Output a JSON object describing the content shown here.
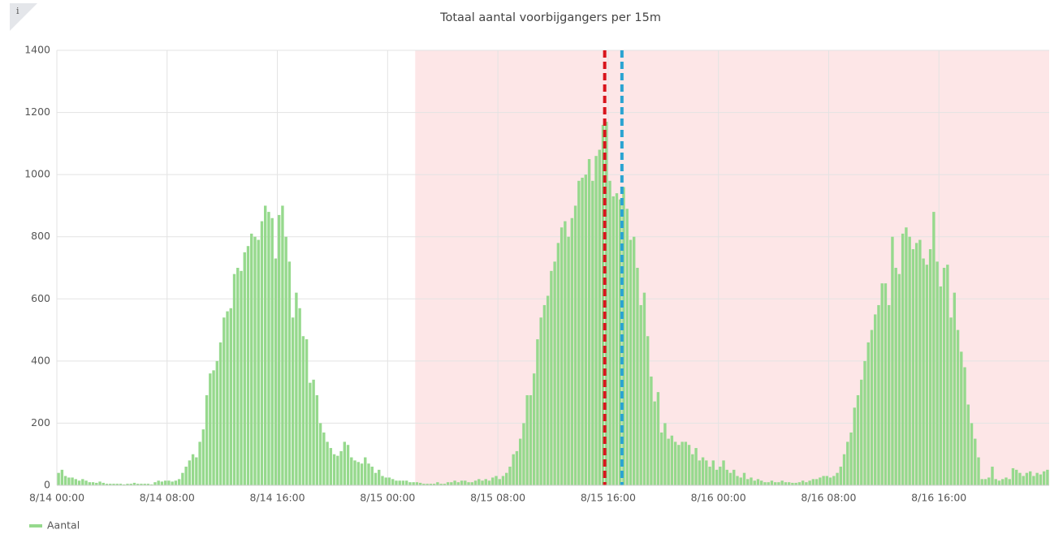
{
  "chart_data": {
    "type": "bar",
    "title": "Totaal aantal voorbijgangers per 15m",
    "series": [
      {
        "name": "Aantal",
        "color": "#96d98d",
        "values": [
          40,
          50,
          30,
          25,
          25,
          20,
          15,
          20,
          15,
          10,
          10,
          8,
          12,
          8,
          5,
          5,
          5,
          5,
          5,
          3,
          5,
          5,
          8,
          5,
          5,
          5,
          5,
          3,
          10,
          15,
          12,
          15,
          15,
          12,
          15,
          20,
          40,
          60,
          80,
          100,
          90,
          140,
          180,
          290,
          360,
          370,
          400,
          460,
          540,
          560,
          570,
          680,
          700,
          690,
          750,
          770,
          810,
          800,
          790,
          850,
          900,
          880,
          860,
          730,
          870,
          900,
          800,
          720,
          540,
          620,
          570,
          480,
          470,
          330,
          340,
          290,
          200,
          170,
          140,
          120,
          100,
          95,
          110,
          140,
          130,
          90,
          80,
          75,
          70,
          90,
          70,
          60,
          40,
          50,
          30,
          25,
          25,
          20,
          15,
          15,
          15,
          15,
          10,
          10,
          10,
          8,
          5,
          5,
          5,
          5,
          10,
          5,
          5,
          10,
          10,
          15,
          10,
          15,
          15,
          10,
          10,
          15,
          20,
          15,
          20,
          15,
          25,
          30,
          20,
          30,
          40,
          60,
          100,
          110,
          150,
          200,
          290,
          290,
          360,
          470,
          540,
          580,
          610,
          690,
          720,
          780,
          830,
          850,
          800,
          860,
          900,
          980,
          990,
          1000,
          1050,
          980,
          1060,
          1080,
          1160,
          1170,
          980,
          930,
          940,
          920,
          960,
          890,
          790,
          800,
          700,
          580,
          620,
          480,
          350,
          270,
          300,
          170,
          200,
          150,
          160,
          140,
          130,
          140,
          140,
          130,
          100,
          120,
          80,
          90,
          80,
          60,
          80,
          50,
          60,
          80,
          50,
          40,
          50,
          30,
          25,
          40,
          20,
          25,
          15,
          20,
          15,
          10,
          10,
          15,
          10,
          10,
          15,
          10,
          10,
          8,
          8,
          10,
          15,
          10,
          15,
          20,
          20,
          25,
          30,
          30,
          25,
          30,
          40,
          60,
          100,
          140,
          170,
          250,
          290,
          340,
          400,
          460,
          500,
          550,
          580,
          650,
          650,
          580,
          800,
          700,
          680,
          810,
          830,
          800,
          760,
          780,
          790,
          730,
          710,
          760,
          880,
          720,
          640,
          700,
          710,
          540,
          620,
          500,
          430,
          380,
          260,
          200,
          150,
          90,
          20,
          20,
          25,
          60,
          20,
          15,
          20,
          25,
          20,
          55,
          50,
          40,
          30,
          40,
          45,
          30,
          40,
          35,
          45,
          50
        ]
      }
    ],
    "x": [
      "8/14 00:00",
      "8/14 00:15",
      "8/14 00:30",
      "8/14 00:45",
      "8/14 01:00",
      "8/14 01:15",
      "8/14 01:30",
      "8/14 01:45",
      "8/14 02:00",
      "8/14 02:15",
      "8/14 02:30",
      "8/14 02:45",
      "8/14 03:00",
      "8/14 03:15",
      "8/14 03:30",
      "8/14 03:45",
      "8/14 04:00",
      "8/14 04:15",
      "8/14 04:30",
      "8/14 04:45",
      "8/14 05:00",
      "8/14 05:15",
      "8/14 05:30",
      "8/14 05:45",
      "8/14 06:00",
      "8/14 06:15",
      "8/14 06:30",
      "8/14 06:45",
      "8/14 07:00",
      "8/14 07:15",
      "8/14 07:30",
      "8/14 07:45",
      "8/14 08:00",
      "8/14 08:15",
      "8/14 08:30",
      "8/14 08:45",
      "8/14 09:00",
      "8/14 09:15",
      "8/14 09:30",
      "8/14 09:45",
      "8/14 10:00",
      "8/14 10:15",
      "8/14 10:30",
      "8/14 10:45",
      "8/14 11:00",
      "8/14 11:15",
      "8/14 11:30",
      "8/14 11:45",
      "8/14 12:00",
      "8/14 12:15",
      "8/14 12:30",
      "8/14 12:45",
      "8/14 13:00",
      "8/14 13:15",
      "8/14 13:30",
      "8/14 13:45",
      "8/14 14:00",
      "8/14 14:15",
      "8/14 14:30",
      "8/14 14:45",
      "8/14 15:00",
      "8/14 15:15",
      "8/14 15:30",
      "8/14 15:45",
      "8/14 16:00",
      "8/14 16:15",
      "8/14 16:30",
      "8/14 16:45",
      "8/14 17:00",
      "8/14 17:15",
      "8/14 17:30",
      "8/14 17:45",
      "8/14 18:00",
      "8/14 18:15",
      "8/14 18:30",
      "8/14 18:45",
      "8/14 19:00",
      "8/14 19:15",
      "8/14 19:30",
      "8/14 19:45",
      "8/14 20:00",
      "8/14 20:15",
      "8/14 20:30",
      "8/14 20:45",
      "8/14 21:00",
      "8/14 21:15",
      "8/14 21:30",
      "8/14 21:45",
      "8/14 22:00",
      "8/14 22:15",
      "8/14 22:30",
      "8/14 22:45",
      "8/14 23:00",
      "8/14 23:15",
      "8/14 23:30",
      "8/14 23:45",
      "8/15 00:00",
      "8/15 00:15",
      "8/15 00:30",
      "8/15 00:45",
      "8/15 01:00",
      "8/15 01:15",
      "8/15 01:30",
      "8/15 01:45",
      "8/15 02:00",
      "8/15 02:15",
      "8/15 02:30",
      "8/15 02:45",
      "8/15 03:00",
      "8/15 03:15",
      "8/15 03:30",
      "8/15 03:45",
      "8/15 04:00",
      "8/15 04:15",
      "8/15 04:30",
      "8/15 04:45",
      "8/15 05:00",
      "8/15 05:15",
      "8/15 05:30",
      "8/15 05:45",
      "8/15 06:00",
      "8/15 06:15",
      "8/15 06:30",
      "8/15 06:45",
      "8/15 07:00",
      "8/15 07:15",
      "8/15 07:30",
      "8/15 07:45",
      "8/15 08:00",
      "8/15 08:15",
      "8/15 08:30",
      "8/15 08:45",
      "8/15 09:00",
      "8/15 09:15",
      "8/15 09:30",
      "8/15 09:45",
      "8/15 10:00",
      "8/15 10:15",
      "8/15 10:30",
      "8/15 10:45",
      "8/15 11:00",
      "8/15 11:15",
      "8/15 11:30",
      "8/15 11:45",
      "8/15 12:00",
      "8/15 12:15",
      "8/15 12:30",
      "8/15 12:45",
      "8/15 13:00",
      "8/15 13:15",
      "8/15 13:30",
      "8/15 13:45",
      "8/15 14:00",
      "8/15 14:15",
      "8/15 14:30",
      "8/15 14:45",
      "8/15 15:00",
      "8/15 15:15",
      "8/15 15:30",
      "8/15 15:45",
      "8/15 16:00",
      "8/15 16:15",
      "8/15 16:30",
      "8/15 16:45",
      "8/15 17:00",
      "8/15 17:15",
      "8/15 17:30",
      "8/15 17:45",
      "8/15 18:00",
      "8/15 18:15",
      "8/15 18:30",
      "8/15 18:45",
      "8/15 19:00",
      "8/15 19:15",
      "8/15 19:30",
      "8/15 19:45",
      "8/15 20:00",
      "8/15 20:15",
      "8/15 20:30",
      "8/15 20:45",
      "8/15 21:00",
      "8/15 21:15",
      "8/15 21:30",
      "8/15 21:45",
      "8/15 22:00",
      "8/15 22:15",
      "8/15 22:30",
      "8/15 22:45",
      "8/15 23:00",
      "8/15 23:15",
      "8/15 23:30",
      "8/15 23:45",
      "8/16 00:00",
      "8/16 00:15",
      "8/16 00:30",
      "8/16 00:45",
      "8/16 01:00",
      "8/16 01:15",
      "8/16 01:30",
      "8/16 01:45",
      "8/16 02:00",
      "8/16 02:15",
      "8/16 02:30",
      "8/16 02:45",
      "8/16 03:00",
      "8/16 03:15",
      "8/16 03:30",
      "8/16 03:45",
      "8/16 04:00",
      "8/16 04:15",
      "8/16 04:30",
      "8/16 04:45",
      "8/16 05:00",
      "8/16 05:15",
      "8/16 05:30",
      "8/16 05:45",
      "8/16 06:00",
      "8/16 06:15",
      "8/16 06:30",
      "8/16 06:45",
      "8/16 07:00",
      "8/16 07:15",
      "8/16 07:30",
      "8/16 07:45",
      "8/16 08:00",
      "8/16 08:15",
      "8/16 08:30",
      "8/16 08:45",
      "8/16 09:00",
      "8/16 09:15",
      "8/16 09:30",
      "8/16 09:45",
      "8/16 10:00",
      "8/16 10:15",
      "8/16 10:30",
      "8/16 10:45",
      "8/16 11:00",
      "8/16 11:15",
      "8/16 11:30",
      "8/16 11:45",
      "8/16 12:00",
      "8/16 12:15",
      "8/16 12:30",
      "8/16 12:45",
      "8/16 13:00",
      "8/16 13:15",
      "8/16 13:30",
      "8/16 13:45",
      "8/16 14:00",
      "8/16 14:15",
      "8/16 14:30",
      "8/16 14:45",
      "8/16 15:00",
      "8/16 15:15",
      "8/16 15:30",
      "8/16 15:45",
      "8/16 16:00",
      "8/16 16:15",
      "8/16 16:30",
      "8/16 16:45",
      "8/16 17:00",
      "8/16 17:15",
      "8/16 17:30",
      "8/16 17:45",
      "8/16 18:00",
      "8/16 18:15",
      "8/16 18:30",
      "8/16 18:45",
      "8/16 19:00",
      "8/16 19:15",
      "8/16 19:30",
      "8/16 19:45",
      "8/16 20:00",
      "8/16 20:15",
      "8/16 20:30",
      "8/16 20:45",
      "8/16 21:00",
      "8/16 21:15",
      "8/16 21:30",
      "8/16 21:45",
      "8/16 22:00",
      "8/16 22:15",
      "8/16 22:30",
      "8/16 22:45",
      "8/16 23:00",
      "8/16 23:15",
      "8/16 23:30",
      "8/16 23:45"
    ],
    "xlim": [
      "8/14 00:00",
      "8/17 00:00"
    ],
    "xticks": [
      "8/14 00:00",
      "8/14 08:00",
      "8/14 16:00",
      "8/15 00:00",
      "8/15 08:00",
      "8/15 16:00",
      "8/16 00:00",
      "8/16 08:00",
      "8/16 16:00"
    ],
    "ylim": [
      0,
      1400
    ],
    "yticks": [
      0,
      200,
      400,
      600,
      800,
      1000,
      1200,
      1400
    ],
    "grid": true,
    "region": {
      "from": "8/15 02:00",
      "color": "#fde6e7"
    },
    "markers": [
      {
        "x": "8/15 15:45",
        "color": "#d8141c"
      },
      {
        "x": "8/15 17:00",
        "color": "#2aa3d2"
      }
    ],
    "legend": "bottom-left"
  }
}
